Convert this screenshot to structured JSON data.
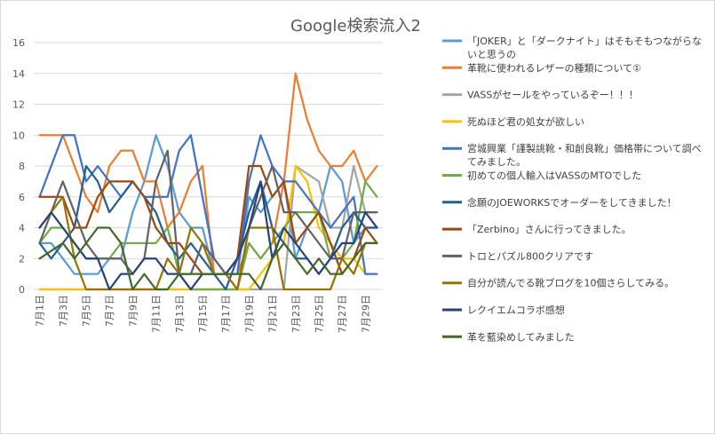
{
  "chart_data": {
    "type": "line",
    "title": "Google検索流入2",
    "xlabel": "",
    "ylabel": "",
    "ylim": [
      0,
      16
    ],
    "yticks": [
      0,
      2,
      4,
      6,
      8,
      10,
      12,
      14,
      16
    ],
    "grid": true,
    "legend_position": "right",
    "categories": [
      "7月1日",
      "7月2日",
      "7月3日",
      "7月4日",
      "7月5日",
      "7月6日",
      "7月7日",
      "7月8日",
      "7月9日",
      "7月10日",
      "7月11日",
      "7月12日",
      "7月13日",
      "7月14日",
      "7月15日",
      "7月16日",
      "7月17日",
      "7月18日",
      "7月19日",
      "7月20日",
      "7月21日",
      "7月22日",
      "7月23日",
      "7月24日",
      "7月25日",
      "7月26日",
      "7月27日",
      "7月28日",
      "7月29日",
      "7月30日"
    ],
    "tick_labels": [
      "7月1日",
      "7月3日",
      "7月5日",
      "7月7日",
      "7月9日",
      "7月11日",
      "7月13日",
      "7月15日",
      "7月17日",
      "7月19日",
      "7月21日",
      "7月23日",
      "7月25日",
      "7月27日",
      "7月29日"
    ],
    "series": [
      {
        "name": "「JOKER」と「ダークナイト」はそもそもつながらないと思うの",
        "color": "#5b9bd5",
        "values": [
          3,
          3,
          2,
          1,
          1,
          1,
          2,
          2,
          5,
          7,
          10,
          8,
          5,
          4,
          4,
          1,
          1,
          1,
          6,
          5,
          6,
          7,
          2,
          4,
          5,
          8,
          7,
          3,
          4,
          4
        ]
      },
      {
        "name": "革靴に使われるレザーの種類について①",
        "color": "#ed7d31",
        "values": [
          10,
          10,
          10,
          8,
          6,
          5,
          8,
          9,
          9,
          7,
          7,
          4,
          5,
          7,
          8,
          1,
          1,
          1,
          3,
          2,
          3,
          7,
          14,
          11,
          9,
          8,
          8,
          9,
          7,
          8
        ]
      },
      {
        "name": "VASSがセールをやっているぞー！！！",
        "color": "#a5a5a5",
        "values": [
          0,
          0,
          0,
          0,
          0,
          0,
          0,
          0,
          0,
          0,
          0,
          0,
          0,
          0,
          0,
          0,
          0,
          0,
          0,
          0,
          0,
          0,
          8,
          7.5,
          7,
          4,
          4,
          8,
          5,
          5
        ]
      },
      {
        "name": "死ぬほど君の処女が欲しい",
        "color": "#ffc000",
        "values": [
          0,
          0,
          0,
          0,
          0,
          0,
          0,
          0,
          0,
          0,
          0,
          0,
          0,
          0,
          0,
          0,
          0,
          0,
          0,
          1,
          2,
          3,
          8,
          7,
          4,
          3,
          2,
          2,
          1,
          1
        ]
      },
      {
        "name": "宮城興業「謹製誂靴・和創良靴」価格帯について調べてみました。",
        "color": "#4472c4",
        "values": [
          6,
          8,
          10,
          10,
          7,
          8,
          7,
          6,
          7,
          6,
          6,
          6,
          9,
          10,
          6,
          2,
          1,
          1,
          7,
          10,
          8,
          7,
          7,
          6,
          5,
          4,
          5,
          6,
          1,
          1
        ]
      },
      {
        "name": "初めての個人輸入はVASSのMTOでした",
        "color": "#70ad47",
        "values": [
          3,
          4,
          4,
          3,
          2,
          2,
          2,
          3,
          3,
          3,
          3,
          4,
          1,
          0,
          0,
          0,
          0,
          0,
          3,
          2,
          3,
          4,
          5,
          5,
          5,
          2,
          2,
          3,
          7,
          6
        ]
      },
      {
        "name": "念願のJOEWORKSでオーダーをしてきました！",
        "color": "#255e91",
        "values": [
          3,
          2,
          3,
          4,
          8,
          7,
          5,
          6,
          7,
          6,
          5,
          3,
          2,
          3,
          2,
          1,
          0,
          2,
          5,
          7,
          4,
          3,
          2,
          2,
          1,
          2,
          4,
          5,
          4,
          4
        ]
      },
      {
        "name": "「Zerbino」さんに行ってきました。",
        "color": "#9e480e",
        "values": [
          6,
          6,
          6,
          4,
          4,
          6,
          7,
          7,
          7,
          6,
          4,
          3,
          3,
          2,
          1,
          1,
          1,
          2,
          8,
          8,
          6,
          7,
          3,
          4,
          5,
          3,
          1,
          2,
          4,
          3
        ]
      },
      {
        "name": "トロとパズル800クリアです",
        "color": "#636363",
        "values": [
          3,
          5,
          7,
          5,
          3,
          2,
          2,
          2,
          1,
          2,
          7,
          9,
          1,
          1,
          3,
          2,
          1,
          0,
          4,
          6,
          8,
          5,
          5,
          4,
          3,
          2,
          2,
          5,
          5,
          5
        ]
      },
      {
        "name": "自分が読んでる靴ブログを10個さらしてみる。",
        "color": "#997300",
        "values": [
          4,
          5,
          6,
          2,
          0,
          0,
          0,
          0,
          0,
          0,
          0,
          2,
          1,
          4,
          3,
          1,
          1,
          0,
          4,
          4,
          4,
          0,
          0,
          0,
          0,
          0,
          2,
          1,
          3,
          3
        ]
      },
      {
        "name": "レクイエムコラボ感想",
        "color": "#264478",
        "values": [
          4,
          5,
          4,
          3,
          2,
          2,
          0,
          1,
          1,
          2,
          2,
          1,
          1,
          0,
          1,
          1,
          1,
          2,
          4,
          7,
          2,
          4,
          3,
          2,
          1,
          2,
          3,
          3,
          5,
          4
        ]
      },
      {
        "name": "革を藍染めしてみました",
        "color": "#43682b",
        "values": [
          2,
          2.5,
          3,
          2,
          3,
          4,
          4,
          3,
          0,
          1,
          0,
          0,
          1,
          1,
          1,
          1,
          1,
          1,
          1,
          0,
          2,
          3,
          2,
          1,
          2,
          1,
          1,
          2,
          3,
          3
        ]
      }
    ]
  }
}
